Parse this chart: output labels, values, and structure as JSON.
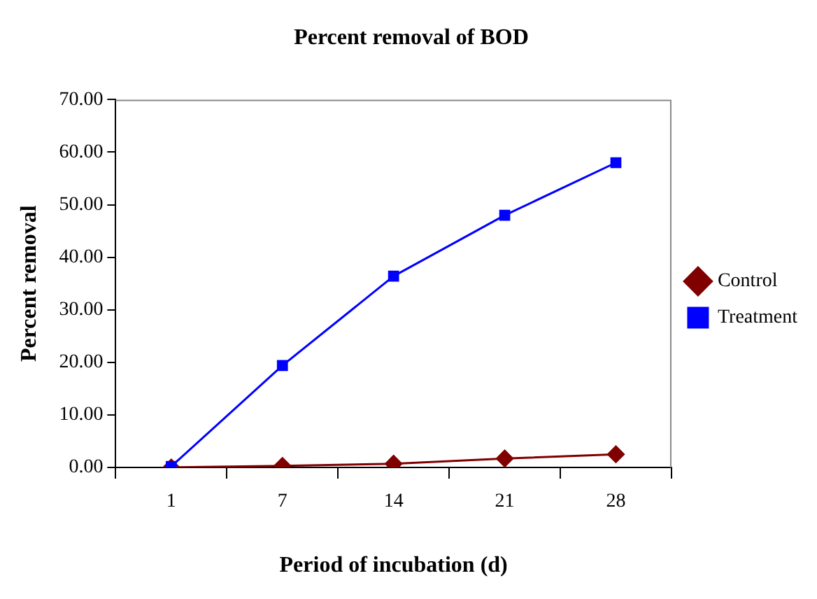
{
  "chart_data": {
    "type": "line",
    "title": "Percent removal of BOD",
    "xlabel": "Period of incubation (d)",
    "ylabel": "Percent removal",
    "categories": [
      "1",
      "7",
      "14",
      "21",
      "28"
    ],
    "series": [
      {
        "name": "Control",
        "color": "#800000",
        "marker": "diamond",
        "values": [
          0.0,
          0.3,
          0.7,
          1.7,
          2.5
        ]
      },
      {
        "name": "Treatment",
        "color": "#0000ff",
        "marker": "square",
        "values": [
          0.2,
          19.4,
          36.4,
          48.0,
          58.0
        ]
      }
    ],
    "ylim": [
      0,
      70
    ],
    "yticks": [
      {
        "value": 0,
        "label": "0.00"
      },
      {
        "value": 10,
        "label": "10.00"
      },
      {
        "value": 20,
        "label": "20.00"
      },
      {
        "value": 30,
        "label": "30.00"
      },
      {
        "value": 40,
        "label": "40.00"
      },
      {
        "value": 50,
        "label": "50.00"
      },
      {
        "value": 60,
        "label": "60.00"
      },
      {
        "value": 70,
        "label": "70.00"
      }
    ],
    "grid": false,
    "legend": "right",
    "line_style": "solid"
  }
}
